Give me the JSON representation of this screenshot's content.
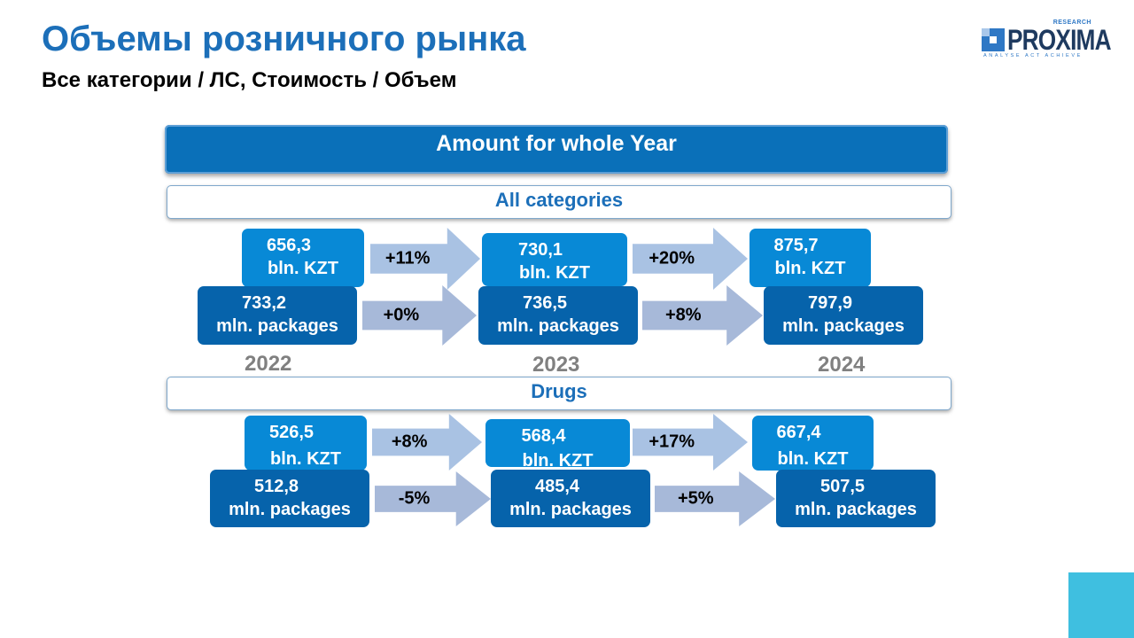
{
  "title": "Объемы розничного рынка",
  "subtitle": "Все категории / ЛС, Стоимость / Объем",
  "logo": {
    "word": "PROXIMA",
    "research": "RESEARCH",
    "tagline": "ANALYSE  ACT  ACHIEVE"
  },
  "header": "Amount for whole Year",
  "years": [
    "2022",
    "2023",
    "2024"
  ],
  "sections": [
    {
      "name": "All categories",
      "value_row": {
        "unit": "bln. KZT",
        "values": [
          "656,3",
          "730,1",
          "875,7"
        ],
        "growth": [
          "+11%",
          "+20%"
        ]
      },
      "volume_row": {
        "unit": "mln. packages",
        "values": [
          "733,2",
          "736,5",
          "797,9"
        ],
        "growth": [
          "+0%",
          "+8%"
        ]
      }
    },
    {
      "name": "Drugs",
      "value_row": {
        "unit": "bln. KZT",
        "values": [
          "526,5",
          "568,4",
          "667,4"
        ],
        "growth": [
          "+8%",
          "+17%"
        ]
      },
      "volume_row": {
        "unit": "mln. packages",
        "values": [
          "512,8",
          "485,4",
          "507,5"
        ],
        "growth": [
          "-5%",
          "+5%"
        ]
      }
    }
  ],
  "colors": {
    "title": "#1c6fb9",
    "header_bg": "#0a70b9",
    "value_box": "#0889d6",
    "volume_box": "#0663ab",
    "arrow": "#a9c2e3",
    "year_label": "#808080",
    "corner_accent": "#3fbfe0"
  }
}
